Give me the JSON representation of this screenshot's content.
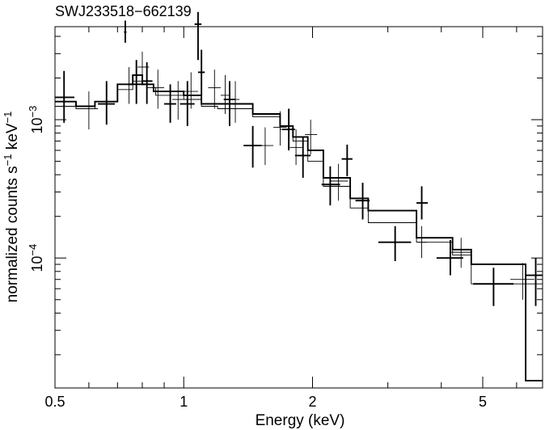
{
  "chart_data": {
    "type": "scatter",
    "title": "SWJ233518−662139",
    "xlabel": "Energy (keV)",
    "ylabel": {
      "prefix": "normalized counts s",
      "exp1": "−1",
      "mid": " keV",
      "exp2": "−1"
    },
    "x_scale": "log",
    "y_scale": "log",
    "xlim": [
      0.5,
      6.9
    ],
    "ylim": [
      1.15e-05,
      0.0047
    ],
    "x_ticks": [
      {
        "value": 0.5,
        "label": "0.5"
      },
      {
        "value": 1,
        "label": "1"
      },
      {
        "value": 2,
        "label": "2"
      },
      {
        "value": 5,
        "label": "5"
      }
    ],
    "y_ticks": [
      {
        "value": 0.0001,
        "base": "10",
        "exp": "−4"
      },
      {
        "value": 0.001,
        "base": "10",
        "exp": "−3"
      }
    ],
    "series": [
      {
        "style": "thick",
        "model_step": {
          "edges": [
            0.5,
            0.56,
            0.62,
            0.7,
            0.76,
            0.8,
            0.85,
            0.92,
            1.0,
            1.1,
            1.2,
            1.3,
            1.45,
            1.68,
            1.8,
            1.95,
            2.12,
            2.45,
            2.7,
            3.5,
            4.25,
            4.7,
            6.3,
            6.9
          ],
          "values": [
            0.00135,
            0.00125,
            0.00135,
            0.0018,
            0.0021,
            0.0018,
            0.0016,
            0.0016,
            0.0015,
            0.0013,
            0.0013,
            0.0013,
            0.0011,
            0.0009,
            0.00075,
            0.0006,
            0.00038,
            0.00027,
            0.00022,
            0.00014,
            0.000115,
            9e-05,
            1.3e-05
          ]
        },
        "points": [
          {
            "x": 0.525,
            "xlo": 0.5,
            "xhi": 0.555,
            "y": 0.00145,
            "ylo": 0.00095,
            "yhi": 0.00225
          },
          {
            "x": 0.66,
            "xlo": 0.63,
            "xhi": 0.69,
            "y": 0.0013,
            "ylo": 0.00092,
            "yhi": 0.0019
          },
          {
            "x": 0.73,
            "xlo": 0.725,
            "xhi": 0.735,
            "y": 0.0043,
            "ylo": 0.0036,
            "yhi": 0.0052
          },
          {
            "x": 0.775,
            "xlo": 0.74,
            "xhi": 0.81,
            "y": 0.0018,
            "ylo": 0.0013,
            "yhi": 0.0027
          },
          {
            "x": 0.82,
            "xlo": 0.8,
            "xhi": 0.845,
            "y": 0.0019,
            "ylo": 0.0013,
            "yhi": 0.0026
          },
          {
            "x": 0.93,
            "xlo": 0.9,
            "xhi": 0.96,
            "y": 0.0013,
            "ylo": 0.00095,
            "yhi": 0.0018
          },
          {
            "x": 1.02,
            "xlo": 0.98,
            "xhi": 1.06,
            "y": 0.0013,
            "ylo": 0.0009,
            "yhi": 0.0019
          },
          {
            "x": 1.08,
            "xlo": 1.06,
            "xhi": 1.1,
            "y": 0.0049,
            "ylo": 0.0027,
            "yhi": 0.006
          },
          {
            "x": 1.1,
            "xlo": 1.08,
            "xhi": 1.12,
            "y": 0.0022,
            "ylo": 0.0015,
            "yhi": 0.0032
          },
          {
            "x": 1.28,
            "xlo": 1.24,
            "xhi": 1.32,
            "y": 0.0014,
            "ylo": 0.0009,
            "yhi": 0.0019
          },
          {
            "x": 1.45,
            "xlo": 1.38,
            "xhi": 1.52,
            "y": 0.00065,
            "ylo": 0.00045,
            "yhi": 0.0009
          },
          {
            "x": 1.76,
            "xlo": 1.7,
            "xhi": 1.82,
            "y": 0.00085,
            "ylo": 0.0006,
            "yhi": 0.0012
          },
          {
            "x": 1.9,
            "xlo": 1.82,
            "xhi": 1.98,
            "y": 0.00055,
            "ylo": 0.00038,
            "yhi": 0.00075
          },
          {
            "x": 2.2,
            "xlo": 2.1,
            "xhi": 2.32,
            "y": 0.00034,
            "ylo": 0.00024,
            "yhi": 0.00046
          },
          {
            "x": 2.41,
            "xlo": 2.34,
            "xhi": 2.48,
            "y": 0.00052,
            "ylo": 0.00039,
            "yhi": 0.00066
          },
          {
            "x": 2.62,
            "xlo": 2.52,
            "xhi": 2.72,
            "y": 0.00026,
            "ylo": 0.00019,
            "yhi": 0.00035
          },
          {
            "x": 3.12,
            "xlo": 2.85,
            "xhi": 3.4,
            "y": 0.00013,
            "ylo": 9.5e-05,
            "yhi": 0.00017
          },
          {
            "x": 3.6,
            "xlo": 3.5,
            "xhi": 3.72,
            "y": 0.00025,
            "ylo": 0.00019,
            "yhi": 0.00033
          },
          {
            "x": 4.2,
            "xlo": 3.9,
            "xhi": 4.5,
            "y": 0.0001,
            "ylo": 7.5e-05,
            "yhi": 0.000135
          },
          {
            "x": 5.3,
            "xlo": 4.75,
            "xhi": 5.9,
            "y": 6.5e-05,
            "ylo": 4.5e-05,
            "yhi": 8.5e-05
          },
          {
            "x": 6.65,
            "xlo": 6.3,
            "xhi": 6.9,
            "y": 7.5e-05,
            "ylo": 4.5e-05,
            "yhi": 0.0001
          }
        ]
      },
      {
        "style": "thin",
        "model_step": {
          "edges": [
            0.5,
            0.56,
            0.62,
            0.7,
            0.76,
            0.82,
            0.86,
            0.92,
            1.0,
            1.1,
            1.2,
            1.3,
            1.45,
            1.68,
            1.8,
            1.95,
            2.12,
            2.45,
            2.7,
            3.5,
            4.25,
            4.7,
            6.3,
            6.9
          ],
          "values": [
            0.00125,
            0.0012,
            0.00135,
            0.00165,
            0.0019,
            0.0017,
            0.0015,
            0.0015,
            0.0014,
            0.00125,
            0.0012,
            0.0012,
            0.00105,
            0.00085,
            0.0007,
            0.0005,
            0.00033,
            0.00023,
            0.00018,
            0.00013,
            0.000105,
            6.5e-05,
            6.5e-05
          ]
        },
        "points": [
          {
            "x": 0.6,
            "xlo": 0.57,
            "xhi": 0.63,
            "y": 0.0012,
            "ylo": 0.00085,
            "yhi": 0.0016
          },
          {
            "x": 0.745,
            "xlo": 0.73,
            "xhi": 0.76,
            "y": 0.0018,
            "ylo": 0.0013,
            "yhi": 0.0024
          },
          {
            "x": 0.8,
            "xlo": 0.78,
            "xhi": 0.83,
            "y": 0.0024,
            "ylo": 0.0018,
            "yhi": 0.0031
          },
          {
            "x": 0.87,
            "xlo": 0.84,
            "xhi": 0.9,
            "y": 0.0017,
            "ylo": 0.0012,
            "yhi": 0.0023
          },
          {
            "x": 0.97,
            "xlo": 0.94,
            "xhi": 1.0,
            "y": 0.0014,
            "ylo": 0.001,
            "yhi": 0.0019
          },
          {
            "x": 1.04,
            "xlo": 1.0,
            "xhi": 1.08,
            "y": 0.0016,
            "ylo": 0.0012,
            "yhi": 0.0022
          },
          {
            "x": 1.18,
            "xlo": 1.14,
            "xhi": 1.22,
            "y": 0.0017,
            "ylo": 0.0012,
            "yhi": 0.0023
          },
          {
            "x": 1.25,
            "xlo": 1.22,
            "xhi": 1.28,
            "y": 0.0015,
            "ylo": 0.0011,
            "yhi": 0.0021
          },
          {
            "x": 1.32,
            "xlo": 1.29,
            "xhi": 1.35,
            "y": 0.0014,
            "ylo": 0.00095,
            "yhi": 0.0019
          },
          {
            "x": 1.55,
            "xlo": 1.48,
            "xhi": 1.62,
            "y": 0.00065,
            "ylo": 0.00047,
            "yhi": 0.00088
          },
          {
            "x": 1.68,
            "xlo": 1.62,
            "xhi": 1.74,
            "y": 0.00088,
            "ylo": 0.00065,
            "yhi": 0.00115
          },
          {
            "x": 1.83,
            "xlo": 1.77,
            "xhi": 1.89,
            "y": 0.00063,
            "ylo": 0.00047,
            "yhi": 0.00085
          },
          {
            "x": 1.98,
            "xlo": 1.92,
            "xhi": 2.05,
            "y": 0.00078,
            "ylo": 0.00056,
            "yhi": 0.001
          },
          {
            "x": 2.3,
            "xlo": 2.2,
            "xhi": 2.42,
            "y": 0.00036,
            "ylo": 0.00026,
            "yhi": 0.00048
          },
          {
            "x": 3.6,
            "xlo": 3.52,
            "xhi": 3.7,
            "y": 0.00013,
            "ylo": 0.0001,
            "yhi": 0.00017
          },
          {
            "x": 4.45,
            "xlo": 4.2,
            "xhi": 4.7,
            "y": 0.00011,
            "ylo": 8.5e-05,
            "yhi": 0.00014
          },
          {
            "x": 6.2,
            "xlo": 5.8,
            "xhi": 6.6,
            "y": 7e-05,
            "ylo": 5e-05,
            "yhi": 9.2e-05
          }
        ]
      }
    ]
  }
}
